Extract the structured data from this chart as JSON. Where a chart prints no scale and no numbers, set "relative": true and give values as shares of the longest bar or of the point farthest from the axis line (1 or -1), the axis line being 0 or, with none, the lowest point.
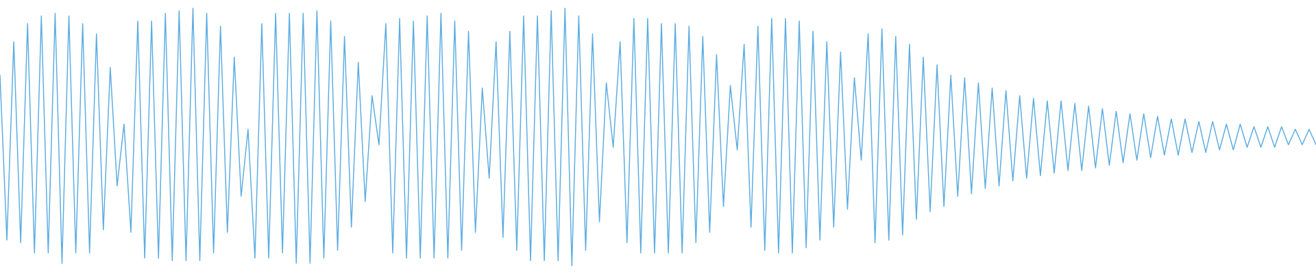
{
  "chart_data": {
    "type": "line",
    "relative": true,
    "color": "#5dade2",
    "categories": [
      null,
      null,
      null,
      null,
      null,
      null,
      null,
      null,
      null,
      null,
      null,
      null,
      null,
      null,
      null,
      null,
      null,
      null,
      null,
      null,
      null,
      null,
      null,
      null,
      null,
      null,
      null,
      null,
      null,
      null,
      null,
      null,
      null,
      null,
      null,
      null,
      null,
      null,
      null,
      null,
      null,
      null,
      null,
      null,
      null,
      null,
      null,
      null,
      null,
      null,
      null,
      null,
      null,
      null,
      null,
      null,
      null,
      null,
      null,
      null,
      null,
      null,
      null,
      null,
      null,
      null,
      null,
      null,
      null,
      null,
      null,
      null,
      null,
      null,
      null,
      null,
      null,
      null,
      null,
      null,
      null,
      null,
      null,
      null,
      null,
      null,
      null,
      null,
      null,
      null,
      null,
      null,
      null,
      null,
      null,
      null,
      null,
      null,
      null,
      null,
      null,
      null,
      null,
      null,
      null,
      null,
      null,
      null,
      null,
      null,
      null,
      null,
      null,
      null,
      null,
      null,
      null,
      null,
      null,
      null,
      null,
      null,
      null,
      null,
      null,
      null,
      null,
      null,
      null,
      null,
      null,
      null,
      null,
      null,
      null,
      null,
      null,
      null,
      null,
      null,
      null,
      null,
      null,
      null,
      null,
      null,
      null,
      null,
      null,
      null,
      null,
      null,
      null,
      null,
      null,
      null,
      null,
      null,
      null,
      null,
      null,
      null,
      null,
      null,
      null,
      null,
      null,
      null,
      null,
      null,
      null,
      null,
      null,
      null,
      null,
      null,
      null,
      null,
      null,
      null,
      null,
      null,
      null,
      null,
      null,
      null,
      null,
      null,
      null,
      null,
      null,
      null
    ],
    "values": [
      0.74,
      0.1,
      0.87,
      0.09,
      0.94,
      0.05,
      0.97,
      0.05,
      0.98,
      0.01,
      0.97,
      0.05,
      0.94,
      0.05,
      0.9,
      0.14,
      0.77,
      0.31,
      0.55,
      0.13,
      0.95,
      0.03,
      0.95,
      0.03,
      0.98,
      0.02,
      0.99,
      0.02,
      1.0,
      0.02,
      0.98,
      0.05,
      0.93,
      0.13,
      0.81,
      0.27,
      0.53,
      0.03,
      0.94,
      0.03,
      0.98,
      0.05,
      0.98,
      0.01,
      0.98,
      0.01,
      0.99,
      0.03,
      0.95,
      0.06,
      0.89,
      0.15,
      0.79,
      0.25,
      0.66,
      0.47,
      0.94,
      0.05,
      0.96,
      0.03,
      0.95,
      0.03,
      0.97,
      0.03,
      0.98,
      0.03,
      0.95,
      0.06,
      0.91,
      0.13,
      0.69,
      0.34,
      0.87,
      0.11,
      0.91,
      0.06,
      0.97,
      0.02,
      0.97,
      0.02,
      0.99,
      0.02,
      1.0,
      0.0,
      0.97,
      0.06,
      0.9,
      0.17,
      0.71,
      0.46,
      0.87,
      0.09,
      0.96,
      0.05,
      0.96,
      0.05,
      0.94,
      0.05,
      0.94,
      0.05,
      0.93,
      0.09,
      0.89,
      0.13,
      0.82,
      0.23,
      0.7,
      0.45,
      0.86,
      0.15,
      0.93,
      0.06,
      0.96,
      0.05,
      0.96,
      0.05,
      0.95,
      0.07,
      0.91,
      0.1,
      0.87,
      0.15,
      0.83,
      0.22,
      0.73,
      0.41,
      0.9,
      0.09,
      0.92,
      0.1,
      0.89,
      0.12,
      0.86,
      0.18,
      0.81,
      0.21,
      0.78,
      0.23,
      0.74,
      0.27,
      0.73,
      0.28,
      0.71,
      0.3,
      0.69,
      0.31,
      0.68,
      0.33,
      0.66,
      0.34,
      0.65,
      0.35,
      0.64,
      0.36,
      0.64,
      0.37,
      0.63,
      0.37,
      0.62,
      0.38,
      0.61,
      0.39,
      0.6,
      0.4,
      0.59,
      0.41,
      0.59,
      0.42,
      0.58,
      0.43,
      0.57,
      0.43,
      0.57,
      0.44,
      0.56,
      0.44,
      0.56,
      0.45,
      0.55,
      0.45,
      0.55,
      0.46,
      0.54,
      0.46,
      0.54,
      0.46,
      0.54,
      0.47,
      0.53,
      0.47,
      0.53,
      0.47
    ]
  }
}
